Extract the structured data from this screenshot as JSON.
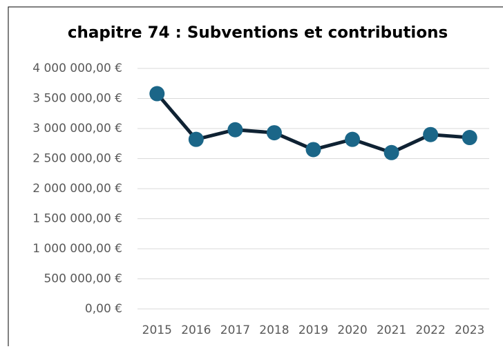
{
  "chart_data": {
    "type": "line",
    "title": "chapitre 74 : Subventions et contributions",
    "categories": [
      "2015",
      "2016",
      "2017",
      "2018",
      "2019",
      "2020",
      "2021",
      "2022",
      "2023"
    ],
    "series": [
      {
        "name": "chapitre 74",
        "color": "#0f2233",
        "marker_color": "#1b6688",
        "values": [
          3580000,
          2820000,
          2980000,
          2930000,
          2650000,
          2820000,
          2600000,
          2900000,
          2850000
        ]
      }
    ],
    "ylim": [
      0,
      4000000
    ],
    "yticks": [
      {
        "value": 0,
        "label": "0,00 €"
      },
      {
        "value": 500000,
        "label": "500 000,00 €"
      },
      {
        "value": 1000000,
        "label": "1 000 000,00 €"
      },
      {
        "value": 1500000,
        "label": "1 500 000,00 €"
      },
      {
        "value": 2000000,
        "label": "2 000 000,00 €"
      },
      {
        "value": 2500000,
        "label": "2 500 000,00 €"
      },
      {
        "value": 3000000,
        "label": "3 000 000,00 €"
      },
      {
        "value": 3500000,
        "label": "3 500 000,00 €"
      },
      {
        "value": 4000000,
        "label": "4 000 000,00 €"
      }
    ],
    "grid": true
  }
}
